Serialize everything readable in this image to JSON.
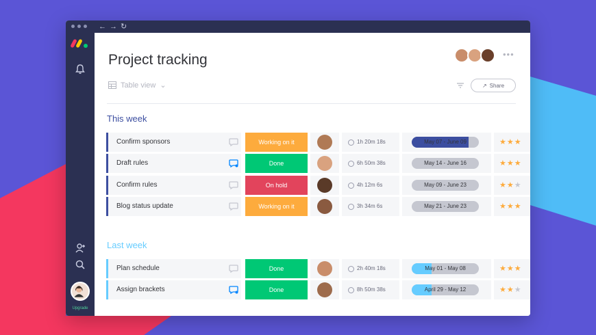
{
  "app": {
    "title": "Project tracking",
    "view_label": "Table view",
    "share_label": "Share",
    "upgrade_label": "Upgrade",
    "more_label": "•••"
  },
  "colors": {
    "this_week": "#3c4ea0",
    "last_week": "#66ccff",
    "status_working": "#fdab3d",
    "status_done": "#00c875",
    "status_on_hold": "#e2445c",
    "sidebar": "#2b3052",
    "background": "#5b55d6"
  },
  "groups": [
    {
      "title": "This week",
      "rows": [
        {
          "name": "Confirm sponsors",
          "status": "Working on it",
          "status_kind": "working",
          "time": "1h 20m 18s",
          "timeline": "May 07 - June 09",
          "progress": 0.85,
          "rating": 3,
          "has_update": false
        },
        {
          "name": "Draft rules",
          "status": "Done",
          "status_kind": "done",
          "time": "6h 50m 38s",
          "timeline": "May 14 - June 16",
          "progress": 0.0,
          "rating": 3,
          "has_update": true
        },
        {
          "name": "Confirm rules",
          "status": "On hold",
          "status_kind": "hold",
          "time": "4h 12m 6s",
          "timeline": "May 09 - June 23",
          "progress": 0.0,
          "rating": 2,
          "has_update": false
        },
        {
          "name": "Blog status update",
          "status": "Working on it",
          "status_kind": "working",
          "time": "3h 34m 6s",
          "timeline": "May 21 - June 23",
          "progress": 0.0,
          "rating": 3,
          "has_update": false
        }
      ]
    },
    {
      "title": "Last week",
      "rows": [
        {
          "name": "Plan schedule",
          "status": "Done",
          "status_kind": "done",
          "time": "2h 40m 18s",
          "timeline": "May 01 - May 08",
          "progress": 0.3,
          "rating": 3,
          "has_update": false
        },
        {
          "name": "Assign brackets",
          "status": "Done",
          "status_kind": "done",
          "time": "8h 50m 38s",
          "timeline": "April 29 - May 12",
          "progress": 0.3,
          "rating": 2,
          "has_update": true
        }
      ]
    }
  ]
}
